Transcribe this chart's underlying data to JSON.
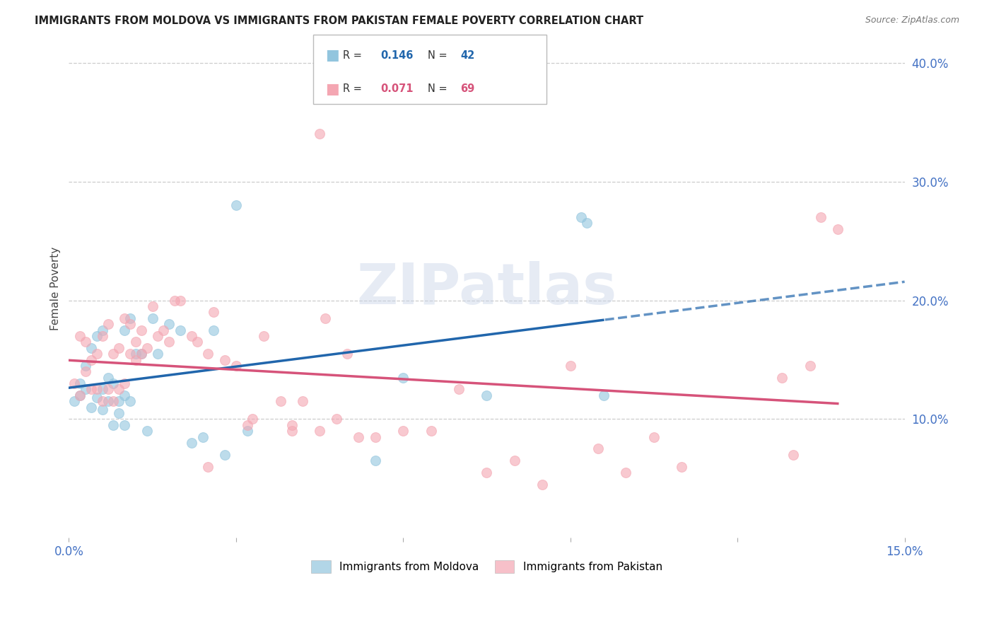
{
  "title": "IMMIGRANTS FROM MOLDOVA VS IMMIGRANTS FROM PAKISTAN FEMALE POVERTY CORRELATION CHART",
  "source": "Source: ZipAtlas.com",
  "ylabel": "Female Poverty",
  "xlim": [
    0.0,
    0.15
  ],
  "ylim": [
    0.0,
    0.42
  ],
  "xticks": [
    0.0,
    0.03,
    0.06,
    0.09,
    0.12,
    0.15
  ],
  "xticklabels": [
    "0.0%",
    "",
    "",
    "",
    "",
    "15.0%"
  ],
  "yticks_right": [
    0.1,
    0.2,
    0.3,
    0.4
  ],
  "ytick_labels_right": [
    "10.0%",
    "20.0%",
    "30.0%",
    "40.0%"
  ],
  "moldova_R": 0.146,
  "moldova_N": 42,
  "pakistan_R": 0.071,
  "pakistan_N": 69,
  "moldova_color": "#92c5de",
  "pakistan_color": "#f4a6b2",
  "moldova_line_color": "#2166ac",
  "pakistan_line_color": "#d6537a",
  "background_color": "#ffffff",
  "grid_color": "#cccccc",
  "moldova_x": [
    0.001,
    0.002,
    0.002,
    0.003,
    0.003,
    0.004,
    0.004,
    0.005,
    0.005,
    0.006,
    0.006,
    0.006,
    0.007,
    0.007,
    0.008,
    0.008,
    0.009,
    0.009,
    0.01,
    0.01,
    0.01,
    0.011,
    0.011,
    0.012,
    0.013,
    0.014,
    0.015,
    0.016,
    0.018,
    0.02,
    0.022,
    0.024,
    0.026,
    0.028,
    0.03,
    0.032,
    0.055,
    0.06,
    0.075,
    0.092,
    0.093,
    0.096
  ],
  "moldova_y": [
    0.115,
    0.12,
    0.13,
    0.125,
    0.145,
    0.11,
    0.16,
    0.118,
    0.17,
    0.125,
    0.108,
    0.175,
    0.115,
    0.135,
    0.13,
    0.095,
    0.105,
    0.115,
    0.12,
    0.175,
    0.095,
    0.115,
    0.185,
    0.155,
    0.155,
    0.09,
    0.185,
    0.155,
    0.18,
    0.175,
    0.08,
    0.085,
    0.175,
    0.07,
    0.28,
    0.09,
    0.065,
    0.135,
    0.12,
    0.27,
    0.265,
    0.12
  ],
  "pakistan_x": [
    0.001,
    0.002,
    0.002,
    0.003,
    0.003,
    0.004,
    0.004,
    0.005,
    0.005,
    0.006,
    0.006,
    0.007,
    0.007,
    0.008,
    0.008,
    0.009,
    0.009,
    0.01,
    0.01,
    0.011,
    0.011,
    0.012,
    0.012,
    0.013,
    0.013,
    0.014,
    0.015,
    0.016,
    0.017,
    0.018,
    0.019,
    0.02,
    0.022,
    0.023,
    0.025,
    0.026,
    0.028,
    0.03,
    0.032,
    0.033,
    0.035,
    0.038,
    0.04,
    0.042,
    0.045,
    0.046,
    0.048,
    0.05,
    0.052,
    0.055,
    0.06,
    0.065,
    0.07,
    0.075,
    0.08,
    0.085,
    0.09,
    0.095,
    0.1,
    0.105,
    0.11,
    0.13,
    0.135,
    0.138,
    0.045,
    0.025,
    0.04,
    0.128,
    0.133
  ],
  "pakistan_y": [
    0.13,
    0.17,
    0.12,
    0.14,
    0.165,
    0.15,
    0.125,
    0.155,
    0.125,
    0.115,
    0.17,
    0.125,
    0.18,
    0.115,
    0.155,
    0.16,
    0.125,
    0.185,
    0.13,
    0.18,
    0.155,
    0.15,
    0.165,
    0.155,
    0.175,
    0.16,
    0.195,
    0.17,
    0.175,
    0.165,
    0.2,
    0.2,
    0.17,
    0.165,
    0.155,
    0.19,
    0.15,
    0.145,
    0.095,
    0.1,
    0.17,
    0.115,
    0.09,
    0.115,
    0.09,
    0.185,
    0.1,
    0.155,
    0.085,
    0.085,
    0.09,
    0.09,
    0.125,
    0.055,
    0.065,
    0.045,
    0.145,
    0.075,
    0.055,
    0.085,
    0.06,
    0.07,
    0.27,
    0.26,
    0.34,
    0.06,
    0.095,
    0.135,
    0.145
  ]
}
